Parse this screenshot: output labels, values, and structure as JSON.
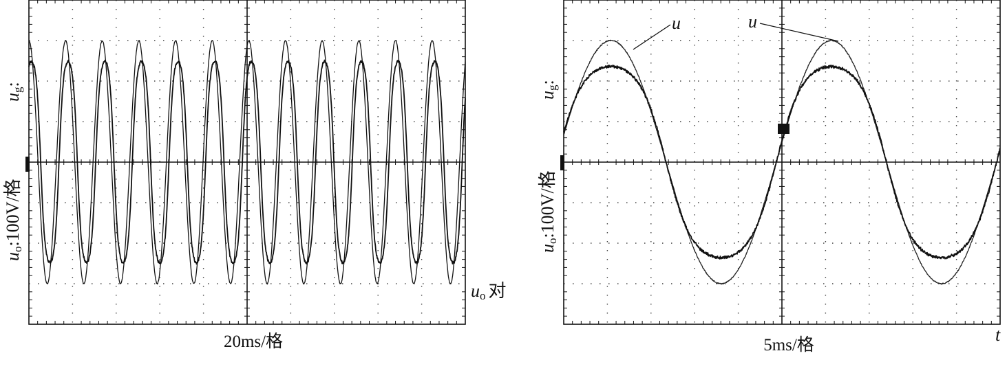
{
  "panels": [
    {
      "id": "left",
      "y_label": {
        "var": "u",
        "sub1": "g",
        "sep": ":",
        "var2": "u",
        "sub2": "o",
        "scale": ":100V/格"
      },
      "time_scale": "20ms/格",
      "annotation": {
        "var": "u",
        "sub": "o",
        "text": "对"
      }
    },
    {
      "id": "right",
      "y_label": {
        "var": "u",
        "sub1": "g",
        "sep": ":",
        "var2": "u",
        "sub2": "o",
        "scale": ":100V/格"
      },
      "time_scale": "5ms/格",
      "t_label": "t",
      "curve_labels": [
        "u",
        "u"
      ]
    }
  ],
  "chart_data": [
    {
      "type": "line",
      "title": "",
      "xlabel": "20ms/格",
      "ylabel": "ug: uo:100V/格",
      "x_divisions": 10,
      "y_divisions": 8,
      "xlim": [
        0,
        10
      ],
      "ylim": [
        -4,
        4
      ],
      "grid": true,
      "series": [
        {
          "kind": "grid_voltage_ug",
          "amplitude_div": 3.0,
          "period_div": 0.84,
          "phase_div": 0.0,
          "shape": "sine",
          "color": "#111111"
        },
        {
          "kind": "output_voltage_uo",
          "amplitude_div": 3.0,
          "period_div": 0.84,
          "phase_div": 0.06,
          "shape": "flat-topped sine",
          "color": "#111111"
        }
      ]
    },
    {
      "type": "line",
      "title": "",
      "xlabel": "5ms/格",
      "ylabel": "ug: uo:100V/格",
      "x_divisions": 10,
      "y_divisions": 8,
      "xlim": [
        0,
        10
      ],
      "ylim": [
        -4,
        4
      ],
      "grid": true,
      "series": [
        {
          "kind": "grid_voltage_ug",
          "amplitude_div": 3.0,
          "period_div": 5.05,
          "zero_cross_div": 9.92,
          "shape": "sine",
          "color": "#222222"
        },
        {
          "kind": "output_voltage_uo",
          "amplitude_div": 2.85,
          "period_div": 5.05,
          "zero_cross_div": 9.92,
          "shape": "flat-topped sine",
          "color": "#111111"
        }
      ]
    }
  ]
}
